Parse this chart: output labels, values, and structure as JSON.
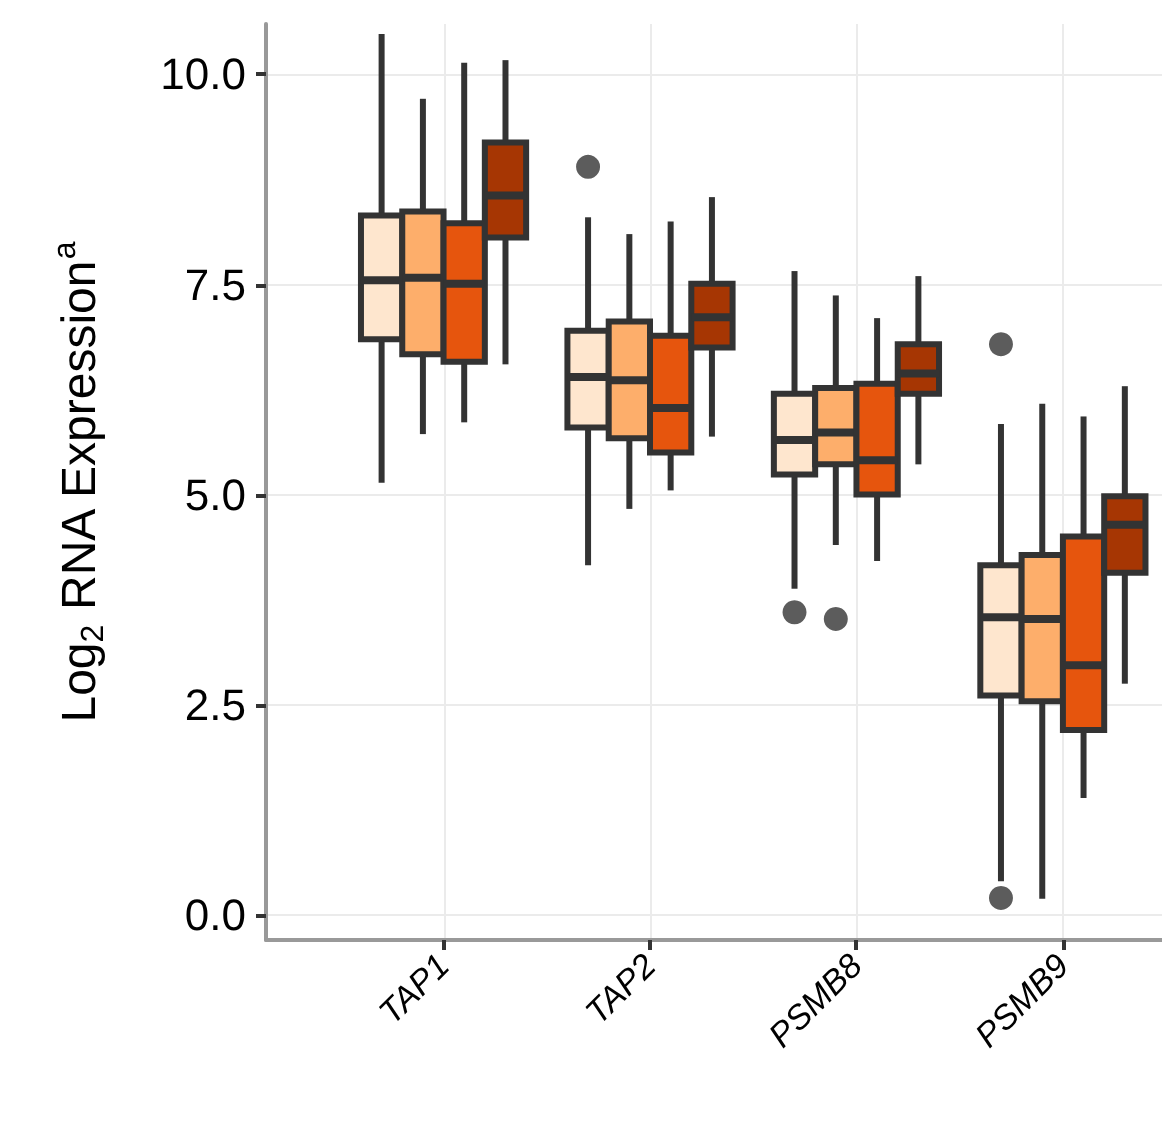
{
  "chart_data": {
    "type": "box",
    "ylabel": "Log$_{2}$ RNA Expression$^{a}$",
    "categories": [
      "TAP1",
      "TAP2",
      "PSMB8",
      "PSMB9"
    ],
    "ylim": [
      -0.3,
      10.6
    ],
    "yticks": [
      {
        "value": 0,
        "label": "0.0"
      },
      {
        "value": 2.5,
        "label": "2.5"
      },
      {
        "value": 5,
        "label": "5.0"
      },
      {
        "value": 7.5,
        "label": "7.5"
      },
      {
        "value": 10,
        "label": "10.0"
      }
    ],
    "grid": true,
    "series": [
      {
        "color": "#fee6ce",
        "boxes": [
          {
            "low": 5.14,
            "q1": 6.85,
            "median": 7.55,
            "q3": 8.32,
            "high": 10.48
          },
          {
            "low": 4.16,
            "q1": 5.8,
            "median": 6.4,
            "q3": 6.95,
            "high": 8.3,
            "outliers": [
              8.9
            ]
          },
          {
            "low": 3.88,
            "q1": 5.24,
            "median": 5.65,
            "q3": 6.2,
            "high": 7.66,
            "outliers": [
              3.6
            ]
          },
          {
            "low": 0.4,
            "q1": 2.61,
            "median": 3.54,
            "q3": 4.16,
            "high": 5.84,
            "outliers": [
              6.79,
              0.2
            ]
          }
        ]
      },
      {
        "color": "#fdae6b",
        "boxes": [
          {
            "low": 5.72,
            "q1": 6.67,
            "median": 7.58,
            "q3": 8.37,
            "high": 9.71
          },
          {
            "low": 4.83,
            "q1": 5.67,
            "median": 6.36,
            "q3": 7.06,
            "high": 8.1
          },
          {
            "low": 4.4,
            "q1": 5.36,
            "median": 5.74,
            "q3": 6.27,
            "high": 7.37,
            "outliers": [
              3.52
            ]
          },
          {
            "low": 0.19,
            "q1": 2.54,
            "median": 3.52,
            "q3": 4.28,
            "high": 6.08
          }
        ]
      },
      {
        "color": "#e6550d",
        "boxes": [
          {
            "low": 5.86,
            "q1": 6.58,
            "median": 7.51,
            "q3": 8.23,
            "high": 10.14
          },
          {
            "low": 5.05,
            "q1": 5.5,
            "median": 6.03,
            "q3": 6.89,
            "high": 8.25
          },
          {
            "low": 4.21,
            "q1": 5.0,
            "median": 5.41,
            "q3": 6.32,
            "high": 7.1
          },
          {
            "low": 1.39,
            "q1": 2.2,
            "median": 2.97,
            "q3": 4.5,
            "high": 5.93
          }
        ]
      },
      {
        "color": "#a63603",
        "boxes": [
          {
            "low": 6.55,
            "q1": 8.06,
            "median": 8.56,
            "q3": 9.19,
            "high": 10.17
          },
          {
            "low": 5.69,
            "q1": 6.75,
            "median": 7.11,
            "q3": 7.51,
            "high": 8.54
          },
          {
            "low": 5.36,
            "q1": 6.2,
            "median": 6.44,
            "q3": 6.79,
            "high": 7.6
          },
          {
            "low": 2.75,
            "q1": 4.07,
            "median": 4.64,
            "q3": 4.98,
            "high": 6.29
          }
        ]
      }
    ]
  }
}
